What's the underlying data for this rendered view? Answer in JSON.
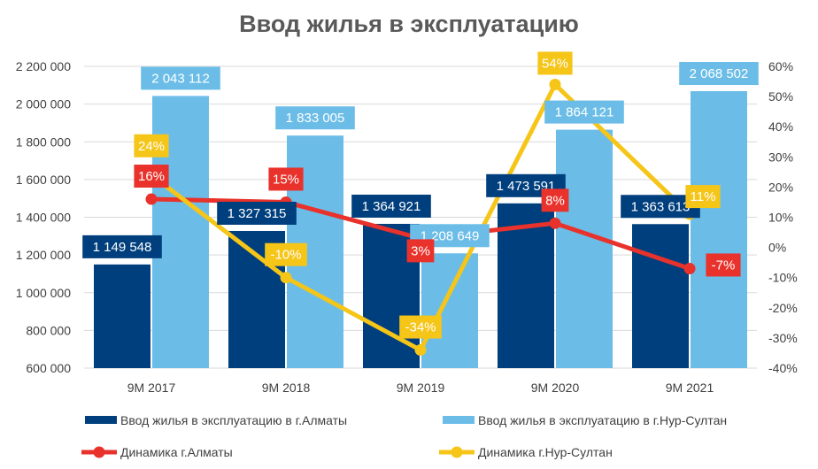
{
  "chart_data": {
    "type": "bar",
    "title": "Ввод жилья в эксплуатацию",
    "categories": [
      "9М 2017",
      "9М 2018",
      "9М 2019",
      "9М 2020",
      "9М 2021"
    ],
    "y_left": {
      "ylim": [
        600000,
        2200000
      ],
      "ticks": [
        600000,
        800000,
        1000000,
        1200000,
        1400000,
        1600000,
        1800000,
        2000000,
        2200000
      ],
      "tick_labels": [
        "600 000",
        "800 000",
        "1 000 000",
        "1 200 000",
        "1 400 000",
        "1 600 000",
        "1 800 000",
        "2 000 000",
        "2 200 000"
      ]
    },
    "y_right": {
      "ylim": [
        -40,
        60
      ],
      "ticks": [
        -40,
        -30,
        -20,
        -10,
        0,
        10,
        20,
        30,
        40,
        50,
        60
      ],
      "tick_labels": [
        "-40%",
        "-30%",
        "-20%",
        "-10%",
        "0%",
        "10%",
        "20%",
        "30%",
        "40%",
        "50%",
        "60%"
      ]
    },
    "grid": true,
    "legend_position": "bottom",
    "series": [
      {
        "name": "Ввод жилья в эксплуатацию в г.Алматы",
        "kind": "bar",
        "axis": "left",
        "color": "#003f7d",
        "values": [
          1149548,
          1327315,
          1364921,
          1473591,
          1363613
        ],
        "labels": [
          "1 149 548",
          "1 327 315",
          "1 364 921",
          "1 473 591",
          "1 363 613"
        ]
      },
      {
        "name": "Ввод жилья в эксплуатацию в г.Нур-Султан",
        "kind": "bar",
        "axis": "left",
        "color": "#6bbde8",
        "values": [
          2043112,
          1833005,
          1208649,
          1864121,
          2068502
        ],
        "labels": [
          "2 043 112",
          "1 833 005",
          "1 208 649",
          "1 864 121",
          "2 068 502"
        ]
      },
      {
        "name": "Динамика г.Алматы",
        "kind": "line",
        "axis": "right",
        "color": "#e8322b",
        "values": [
          16,
          15,
          3,
          8,
          -7
        ],
        "labels": [
          "16%",
          "15%",
          "3%",
          "8%",
          "-7%"
        ]
      },
      {
        "name": "Динамика г.Нур-Султан",
        "kind": "line",
        "axis": "right",
        "color": "#f5c518",
        "values": [
          24,
          -10,
          -34,
          54,
          11
        ],
        "labels": [
          "24%",
          "-10%",
          "-34%",
          "54%",
          "11%"
        ]
      }
    ]
  }
}
